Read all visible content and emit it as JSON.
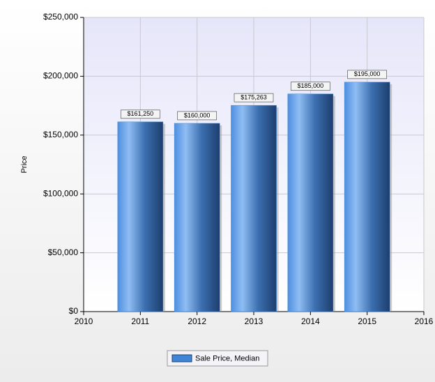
{
  "chart_data": {
    "type": "bar",
    "y_label": "Price",
    "x": [
      2011,
      2012,
      2013,
      2014,
      2015
    ],
    "xlim": [
      2010,
      2016
    ],
    "xticks": [
      2010,
      2011,
      2012,
      2013,
      2014,
      2015,
      2016
    ],
    "ylim": [
      0,
      250000
    ],
    "yticks": [
      {
        "value": 0,
        "label": "$0"
      },
      {
        "value": 50000,
        "label": "$50,000"
      },
      {
        "value": 100000,
        "label": "$100,000"
      },
      {
        "value": 150000,
        "label": "$150,000"
      },
      {
        "value": 200000,
        "label": "$200,000"
      },
      {
        "value": 250000,
        "label": "$250,000"
      }
    ],
    "grid": true,
    "legend": "bottom",
    "series": [
      {
        "name": "Sale Price, Median",
        "color": "#3f86d8",
        "values": [
          161250,
          160000,
          175263,
          185000,
          195000
        ],
        "value_labels": [
          "$161,250",
          "$160,000",
          "$175,263",
          "$185,000",
          "$195,000"
        ]
      }
    ]
  }
}
